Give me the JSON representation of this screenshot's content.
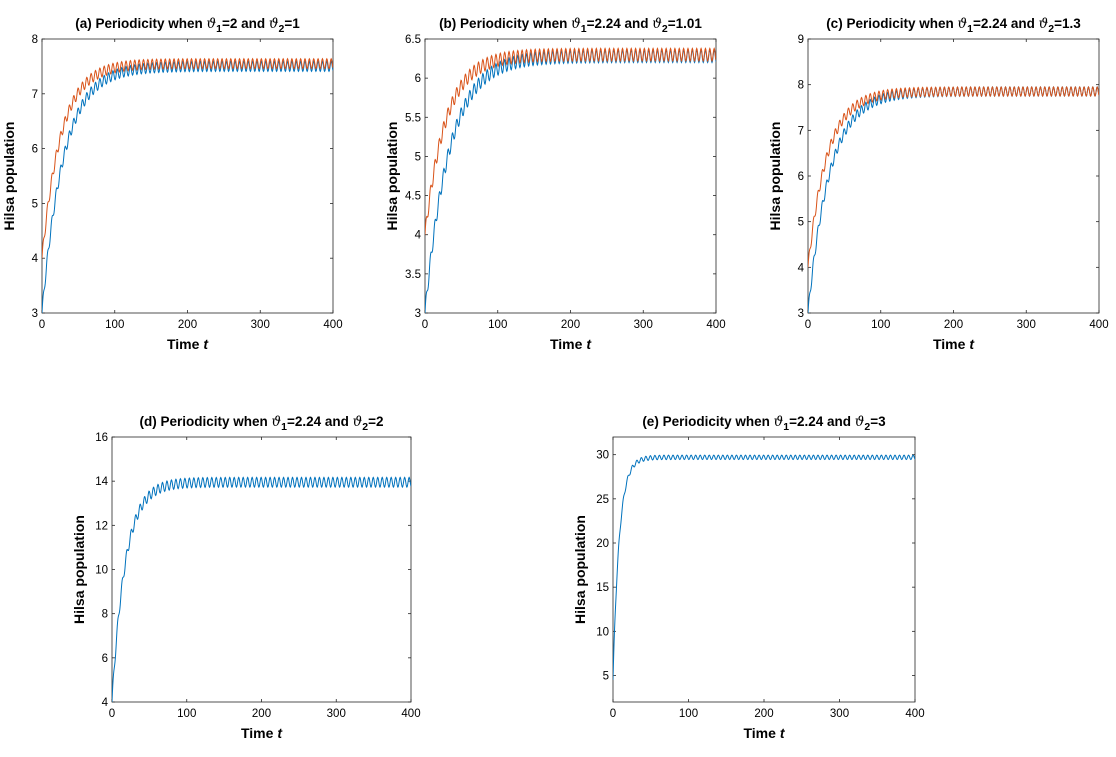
{
  "chart_data": [
    {
      "type": "line",
      "title_parts": [
        "(a) Periodicity when ",
        "ϑ",
        "1",
        "=2 and ",
        "ϑ",
        "2",
        "=1"
      ],
      "xlabel": "Time",
      "xlabel_var": "t",
      "ylabel": "Hilsa population",
      "xlim": [
        0,
        400
      ],
      "ylim": [
        3,
        8
      ],
      "xticks": [
        0,
        100,
        200,
        300,
        400
      ],
      "yticks": [
        3,
        4,
        5,
        6,
        7,
        8
      ],
      "grid": false,
      "series": [
        {
          "color": "#0072bd",
          "start": 3.0,
          "end": 7.5,
          "rise_end_t": 125,
          "amplitude": 0.09,
          "period": 6
        },
        {
          "color": "#d95319",
          "start": 4.0,
          "end": 7.55,
          "rise_end_t": 110,
          "amplitude": 0.09,
          "period": 6
        }
      ]
    },
    {
      "type": "line",
      "title_parts": [
        "(b) Periodicity when ",
        "ϑ",
        "1",
        "=2.24 and ",
        "ϑ",
        "2",
        "=1.01"
      ],
      "xlabel": "Time",
      "xlabel_var": "t",
      "ylabel": "Hilsa population",
      "xlim": [
        0,
        400
      ],
      "ylim": [
        3,
        6.5
      ],
      "xticks": [
        0,
        100,
        200,
        300,
        400
      ],
      "yticks": [
        3,
        3.5,
        4,
        4.5,
        5,
        5.5,
        6,
        6.5
      ],
      "grid": false,
      "series": [
        {
          "color": "#0072bd",
          "start": 3.0,
          "end": 6.28,
          "rise_end_t": 140,
          "amplitude": 0.08,
          "period": 6
        },
        {
          "color": "#d95319",
          "start": 4.0,
          "end": 6.3,
          "rise_end_t": 120,
          "amplitude": 0.08,
          "period": 6
        }
      ]
    },
    {
      "type": "line",
      "title_parts": [
        "(c) Periodicity when ",
        "ϑ",
        "1",
        "=2.24 and ",
        "ϑ",
        "2",
        "=1.3"
      ],
      "xlabel": "Time",
      "xlabel_var": "t",
      "ylabel": "Hilsa population",
      "xlim": [
        0,
        400
      ],
      "ylim": [
        3,
        9
      ],
      "xticks": [
        0,
        100,
        200,
        300,
        400
      ],
      "yticks": [
        3,
        4,
        5,
        6,
        7,
        8,
        9
      ],
      "grid": false,
      "series": [
        {
          "color": "#0072bd",
          "start": 3.0,
          "end": 7.85,
          "rise_end_t": 125,
          "amplitude": 0.1,
          "period": 6
        },
        {
          "color": "#d95319",
          "start": 4.0,
          "end": 7.85,
          "rise_end_t": 110,
          "amplitude": 0.1,
          "period": 6
        }
      ]
    },
    {
      "type": "line",
      "title_parts": [
        "(d) Periodicity when ",
        "ϑ",
        "1",
        "=2.24 and ",
        "ϑ",
        "2",
        "=2"
      ],
      "xlabel": "Time",
      "xlabel_var": "t",
      "ylabel": "Hilsa population",
      "xlim": [
        0,
        400
      ],
      "ylim": [
        4,
        16
      ],
      "xticks": [
        0,
        100,
        200,
        300,
        400
      ],
      "yticks": [
        4,
        6,
        8,
        10,
        12,
        14,
        16
      ],
      "grid": false,
      "series": [
        {
          "color": "#0072bd",
          "start": 4.0,
          "end": 13.95,
          "rise_end_t": 75,
          "amplitude": 0.22,
          "period": 6
        }
      ]
    },
    {
      "type": "line",
      "title_parts": [
        "(e) Periodicity when ",
        "ϑ",
        "1",
        "=2.24 and ",
        "ϑ",
        "2",
        "=3"
      ],
      "xlabel": "Time",
      "xlabel_var": "t",
      "ylabel": "Hilsa population",
      "xlim": [
        0,
        400
      ],
      "ylim": [
        2,
        32
      ],
      "xticks": [
        0,
        100,
        200,
        300,
        400
      ],
      "yticks": [
        5,
        10,
        15,
        20,
        25,
        30
      ],
      "grid": false,
      "series": [
        {
          "color": "#0072bd",
          "start": 4.5,
          "end": 29.7,
          "rise_end_t": 35,
          "amplitude": 0.25,
          "period": 6
        }
      ]
    }
  ]
}
